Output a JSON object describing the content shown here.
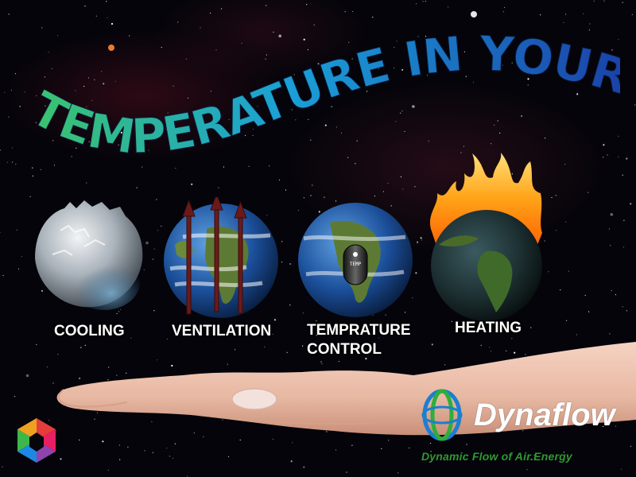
{
  "headline": "TEMPERATURE IN YOUR HANDS",
  "globes": [
    {
      "id": "cooling",
      "label": "COOLING"
    },
    {
      "id": "ventilation",
      "label": "VENTILATION"
    },
    {
      "id": "temperature-control",
      "label": "TEMPRATURE\nCONTROL"
    },
    {
      "id": "heating",
      "label": "HEATING"
    }
  ],
  "thermometer_text": "TEMP",
  "brand": {
    "name": "Dynaflow",
    "tagline": "Dynamic Flow of Air.Energy",
    "tagline_color": "#2f9a2f"
  },
  "colors": {
    "headline_start": "#3fc860",
    "headline_mid": "#1aa0d8",
    "headline_end": "#1a3fa8",
    "label": "#ffffff",
    "arrow": "#6b1a1a",
    "flame": "#ff9a1a"
  }
}
